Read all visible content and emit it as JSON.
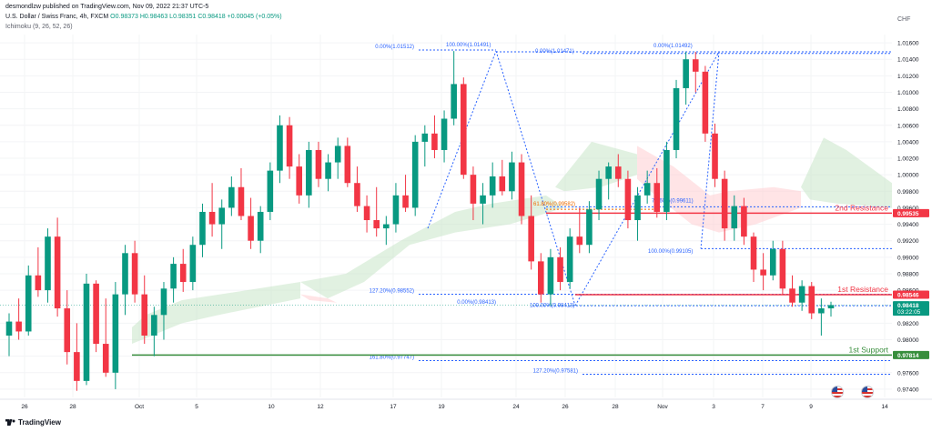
{
  "header": {
    "published": "desmondlzw published on TradingView.com, Nov 09, 2022 21:37 UTC-5",
    "symbol": "U.S. Dollar / Swiss Franc, 4h, FXCM",
    "ohlc": {
      "o": "O0.98373",
      "h": "H0.98463",
      "l": "L0.98351",
      "c": "C0.98418",
      "chg": "+0.00045 (+0.05%)"
    },
    "indicator": "Ichimoku (9, 26, 52, 26)"
  },
  "currency": "CHF",
  "footer": {
    "brand": "TradingView"
  },
  "colors": {
    "up": "#089981",
    "down": "#f23645",
    "fib": "#2962ff",
    "fib_text": "#2962ff",
    "resistance": "#f23645",
    "support": "#388e3c",
    "cloud_bull": "#c8e6c9",
    "cloud_bear": "#ffcdd2",
    "fib_orange": "#ef6c00"
  },
  "chart_data": {
    "type": "candlestick",
    "ylim": [
      0.973,
      1.017
    ],
    "y_ticks": [
      "1.01600",
      "1.01400",
      "1.01200",
      "1.01000",
      "1.00800",
      "1.00600",
      "1.00400",
      "1.00200",
      "1.00000",
      "0.99800",
      "0.99600",
      "0.99400",
      "0.99200",
      "0.99000",
      "0.98800",
      "0.98600",
      "0.98200",
      "0.98000",
      "0.97800",
      "0.97600",
      "0.97400"
    ],
    "x_ticks": [
      "26",
      "28",
      "Oct",
      "5",
      "10",
      "12",
      "17",
      "19",
      "24",
      "26",
      "28",
      "Nov",
      "3",
      "7",
      "9",
      "14"
    ],
    "price_labels": [
      {
        "text": "0.99535",
        "value": 0.99535,
        "color": "#f23645"
      },
      {
        "text": "0.98546",
        "value": 0.98546,
        "color": "#f23645"
      },
      {
        "text": "0.98418",
        "value": 0.98418,
        "color": "#089981",
        "sub": "03:22:05"
      },
      {
        "text": "0.97814",
        "value": 0.97814,
        "color": "#388e3c"
      }
    ],
    "levels": [
      {
        "label": "2nd Resistance",
        "value": 0.99535,
        "color": "#f23645"
      },
      {
        "label": "1st Resistance",
        "value": 0.98546,
        "color": "#f23645"
      },
      {
        "label": "1st Support",
        "value": 0.97814,
        "color": "#388e3c"
      }
    ],
    "fib_labels": [
      {
        "text": "0.00%(1.01512)",
        "value": 1.01512
      },
      {
        "text": "100.00%(1.01491)",
        "value": 1.01491
      },
      {
        "text": "0.00%(1.01471)",
        "value": 1.01471
      },
      {
        "text": "0.00%(1.01492)",
        "value": 1.01492
      },
      {
        "text": "61.80%(0.99582)",
        "value": 0.99582
      },
      {
        "text": "78.60%(0.99611)",
        "value": 0.99611
      },
      {
        "text": "100.00%(0.99105)",
        "value": 0.99105
      },
      {
        "text": "127.20%(0.98552)",
        "value": 0.98552
      },
      {
        "text": "0.00%(0.98413)",
        "value": 0.98413
      },
      {
        "text": "100.00%(0.98413)",
        "value": 0.98413
      },
      {
        "text": "161.80%(0.97747)",
        "value": 0.97747
      },
      {
        "text": "127.20%(0.97581)",
        "value": 0.97581
      }
    ],
    "candles": [
      {
        "o": 0.9805,
        "h": 0.9832,
        "l": 0.978,
        "c": 0.9822
      },
      {
        "o": 0.9822,
        "h": 0.985,
        "l": 0.98,
        "c": 0.981
      },
      {
        "o": 0.981,
        "h": 0.989,
        "l": 0.9805,
        "c": 0.9878
      },
      {
        "o": 0.9878,
        "h": 0.9912,
        "l": 0.9852,
        "c": 0.986
      },
      {
        "o": 0.986,
        "h": 0.9935,
        "l": 0.9845,
        "c": 0.9925
      },
      {
        "o": 0.9925,
        "h": 0.9948,
        "l": 0.9828,
        "c": 0.9838
      },
      {
        "o": 0.9838,
        "h": 0.986,
        "l": 0.977,
        "c": 0.9785
      },
      {
        "o": 0.9785,
        "h": 0.982,
        "l": 0.9738,
        "c": 0.975
      },
      {
        "o": 0.975,
        "h": 0.988,
        "l": 0.9745,
        "c": 0.9868
      },
      {
        "o": 0.9868,
        "h": 0.9872,
        "l": 0.9785,
        "c": 0.9795
      },
      {
        "o": 0.9795,
        "h": 0.985,
        "l": 0.9755,
        "c": 0.976
      },
      {
        "o": 0.976,
        "h": 0.987,
        "l": 0.974,
        "c": 0.9855
      },
      {
        "o": 0.9855,
        "h": 0.9915,
        "l": 0.983,
        "c": 0.9905
      },
      {
        "o": 0.9905,
        "h": 0.992,
        "l": 0.9845,
        "c": 0.9855
      },
      {
        "o": 0.9855,
        "h": 0.9878,
        "l": 0.9795,
        "c": 0.9805
      },
      {
        "o": 0.9805,
        "h": 0.984,
        "l": 0.978,
        "c": 0.983
      },
      {
        "o": 0.983,
        "h": 0.987,
        "l": 0.98,
        "c": 0.9862
      },
      {
        "o": 0.9862,
        "h": 0.99,
        "l": 0.9845,
        "c": 0.9892
      },
      {
        "o": 0.9892,
        "h": 0.991,
        "l": 0.9858,
        "c": 0.987
      },
      {
        "o": 0.987,
        "h": 0.9925,
        "l": 0.986,
        "c": 0.9915
      },
      {
        "o": 0.9915,
        "h": 0.9965,
        "l": 0.99,
        "c": 0.9955
      },
      {
        "o": 0.9955,
        "h": 0.999,
        "l": 0.9925,
        "c": 0.994
      },
      {
        "o": 0.994,
        "h": 0.997,
        "l": 0.991,
        "c": 0.996
      },
      {
        "o": 0.996,
        "h": 0.9998,
        "l": 0.995,
        "c": 0.9985
      },
      {
        "o": 0.9985,
        "h": 1.0008,
        "l": 0.9945,
        "c": 0.995
      },
      {
        "o": 0.995,
        "h": 0.9972,
        "l": 0.991,
        "c": 0.992
      },
      {
        "o": 0.992,
        "h": 0.9962,
        "l": 0.9905,
        "c": 0.9955
      },
      {
        "o": 0.9955,
        "h": 1.0015,
        "l": 0.9945,
        "c": 1.0005
      },
      {
        "o": 1.0005,
        "h": 1.0072,
        "l": 0.999,
        "c": 1.006
      },
      {
        "o": 1.006,
        "h": 1.007,
        "l": 0.9995,
        "c": 1.001
      },
      {
        "o": 1.001,
        "h": 1.0025,
        "l": 0.9965,
        "c": 0.9975
      },
      {
        "o": 0.9975,
        "h": 1.004,
        "l": 0.996,
        "c": 1.003
      },
      {
        "o": 1.003,
        "h": 1.004,
        "l": 0.9985,
        "c": 0.9995
      },
      {
        "o": 0.9995,
        "h": 1.0025,
        "l": 0.998,
        "c": 1.0015
      },
      {
        "o": 1.0015,
        "h": 1.0045,
        "l": 0.9995,
        "c": 1.0035
      },
      {
        "o": 1.0035,
        "h": 1.0045,
        "l": 0.9985,
        "c": 0.999
      },
      {
        "o": 0.999,
        "h": 1.001,
        "l": 0.9955,
        "c": 0.9962
      },
      {
        "o": 0.9962,
        "h": 0.9975,
        "l": 0.993,
        "c": 0.9945
      },
      {
        "o": 0.9945,
        "h": 0.9985,
        "l": 0.9925,
        "c": 0.9935
      },
      {
        "o": 0.9935,
        "h": 0.995,
        "l": 0.9915,
        "c": 0.994
      },
      {
        "o": 0.994,
        "h": 0.999,
        "l": 0.993,
        "c": 0.9975
      },
      {
        "o": 0.9975,
        "h": 1.0,
        "l": 0.9955,
        "c": 0.996
      },
      {
        "o": 0.996,
        "h": 1.0048,
        "l": 0.995,
        "c": 1.004
      },
      {
        "o": 1.004,
        "h": 1.006,
        "l": 1.001,
        "c": 1.005
      },
      {
        "o": 1.005,
        "h": 1.0072,
        "l": 1.002,
        "c": 1.003
      },
      {
        "o": 1.003,
        "h": 1.0078,
        "l": 1.0015,
        "c": 1.0068
      },
      {
        "o": 1.0068,
        "h": 1.015,
        "l": 1.006,
        "c": 1.011
      },
      {
        "o": 1.011,
        "h": 1.0118,
        "l": 0.9995,
        "c": 1.0
      },
      {
        "o": 1.0,
        "h": 1.001,
        "l": 0.9945,
        "c": 0.9965
      },
      {
        "o": 0.9965,
        "h": 0.999,
        "l": 0.994,
        "c": 0.9975
      },
      {
        "o": 0.9975,
        "h": 1.0015,
        "l": 0.996,
        "c": 0.9998
      },
      {
        "o": 0.9998,
        "h": 1.0018,
        "l": 0.9975,
        "c": 0.998
      },
      {
        "o": 0.998,
        "h": 1.0028,
        "l": 0.997,
        "c": 1.0015
      },
      {
        "o": 1.0015,
        "h": 1.0025,
        "l": 0.994,
        "c": 0.995
      },
      {
        "o": 0.995,
        "h": 0.9975,
        "l": 0.9885,
        "c": 0.9895
      },
      {
        "o": 0.9895,
        "h": 0.9905,
        "l": 0.9845,
        "c": 0.9855
      },
      {
        "o": 0.9855,
        "h": 0.991,
        "l": 0.9841,
        "c": 0.99
      },
      {
        "o": 0.99,
        "h": 0.9912,
        "l": 0.986,
        "c": 0.987
      },
      {
        "o": 0.987,
        "h": 0.9935,
        "l": 0.9862,
        "c": 0.9925
      },
      {
        "o": 0.9925,
        "h": 0.996,
        "l": 0.9905,
        "c": 0.9915
      },
      {
        "o": 0.9915,
        "h": 0.9968,
        "l": 0.9905,
        "c": 0.9958
      },
      {
        "o": 0.9958,
        "h": 1.0005,
        "l": 0.9945,
        "c": 0.9995
      },
      {
        "o": 0.9995,
        "h": 1.0015,
        "l": 0.997,
        "c": 1.001
      },
      {
        "o": 1.001,
        "h": 1.0025,
        "l": 0.9985,
        "c": 0.9995
      },
      {
        "o": 0.9995,
        "h": 1.0005,
        "l": 0.9935,
        "c": 0.9945
      },
      {
        "o": 0.9945,
        "h": 0.9985,
        "l": 0.992,
        "c": 0.9975
      },
      {
        "o": 0.9975,
        "h": 1.0005,
        "l": 0.9965,
        "c": 0.999
      },
      {
        "o": 0.999,
        "h": 1.0008,
        "l": 0.9948,
        "c": 0.9955
      },
      {
        "o": 0.9955,
        "h": 1.004,
        "l": 0.9945,
        "c": 1.003
      },
      {
        "o": 1.003,
        "h": 1.0115,
        "l": 1.002,
        "c": 1.0105
      },
      {
        "o": 1.0105,
        "h": 1.0149,
        "l": 1.0085,
        "c": 1.014
      },
      {
        "o": 1.014,
        "h": 1.0149,
        "l": 1.01,
        "c": 1.0125
      },
      {
        "o": 1.0125,
        "h": 1.0132,
        "l": 1.004,
        "c": 1.005
      },
      {
        "o": 1.005,
        "h": 1.0062,
        "l": 0.9985,
        "c": 0.9995
      },
      {
        "o": 0.9995,
        "h": 1.0005,
        "l": 0.992,
        "c": 0.9935
      },
      {
        "o": 0.9935,
        "h": 0.9975,
        "l": 0.992,
        "c": 0.9962
      },
      {
        "o": 0.9962,
        "h": 0.9972,
        "l": 0.9915,
        "c": 0.9925
      },
      {
        "o": 0.9925,
        "h": 0.993,
        "l": 0.987,
        "c": 0.9885
      },
      {
        "o": 0.9885,
        "h": 0.9905,
        "l": 0.986,
        "c": 0.9878
      },
      {
        "o": 0.9878,
        "h": 0.992,
        "l": 0.9872,
        "c": 0.991
      },
      {
        "o": 0.991,
        "h": 0.992,
        "l": 0.9855,
        "c": 0.9862
      },
      {
        "o": 0.9862,
        "h": 0.9878,
        "l": 0.984,
        "c": 0.9845
      },
      {
        "o": 0.9845,
        "h": 0.9872,
        "l": 0.9835,
        "c": 0.9865
      },
      {
        "o": 0.9865,
        "h": 0.987,
        "l": 0.9825,
        "c": 0.9832
      },
      {
        "o": 0.9832,
        "h": 0.985,
        "l": 0.9805,
        "c": 0.9838
      },
      {
        "o": 0.9838,
        "h": 0.9846,
        "l": 0.9828,
        "c": 0.9842
      }
    ]
  }
}
